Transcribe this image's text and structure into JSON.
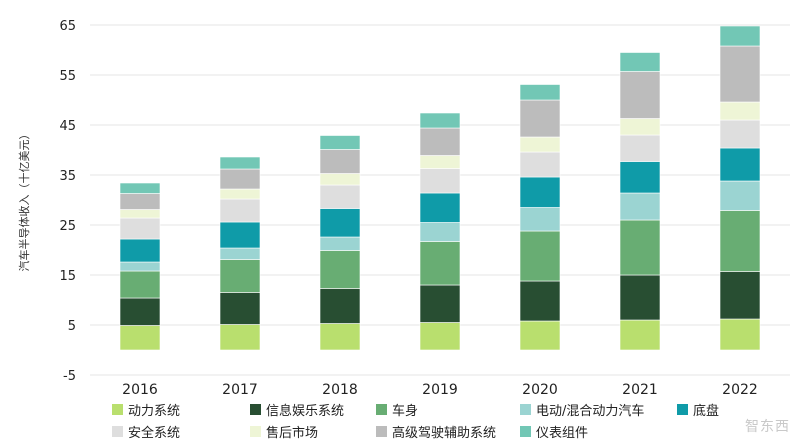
{
  "chart_data": {
    "type": "bar",
    "stacked": true,
    "categories": [
      "2016",
      "2017",
      "2018",
      "2019",
      "2020",
      "2021",
      "2022"
    ],
    "ylabel": "汽车半导体收入（十亿美元）",
    "xlabel": "",
    "title": "",
    "ylim": [
      -5,
      65
    ],
    "yticks": [
      "-5",
      "5",
      "15",
      "25",
      "35",
      "45",
      "55",
      "65"
    ],
    "grid": true,
    "legend_position": "bottom",
    "series": [
      {
        "name": "动力系统",
        "color": "#b9df6e",
        "values": [
          4.9,
          5.1,
          5.3,
          5.5,
          5.8,
          6.0,
          6.2
        ]
      },
      {
        "name": "信息娱乐系统",
        "color": "#284e32",
        "values": [
          5.5,
          6.4,
          7.0,
          7.5,
          8.0,
          9.0,
          9.5
        ]
      },
      {
        "name": "车身",
        "color": "#68ad73",
        "values": [
          5.4,
          6.6,
          7.6,
          8.7,
          10.0,
          11.0,
          12.2
        ]
      },
      {
        "name": "电动/混合动力汽车",
        "color": "#9bd4d2",
        "values": [
          1.8,
          2.3,
          2.7,
          3.8,
          4.7,
          5.4,
          5.9
        ]
      },
      {
        "name": "底盘",
        "color": "#0f9ba8",
        "values": [
          4.6,
          5.2,
          5.7,
          5.9,
          6.1,
          6.3,
          6.6
        ]
      },
      {
        "name": "安全系统",
        "color": "#dedede",
        "values": [
          4.2,
          4.6,
          4.7,
          4.9,
          5.0,
          5.3,
          5.6
        ]
      },
      {
        "name": "售后市场",
        "color": "#eef5d6",
        "values": [
          1.7,
          2.0,
          2.3,
          2.6,
          3.0,
          3.3,
          3.6
        ]
      },
      {
        "name": "高级驾驶辅助系统",
        "color": "#bcbcbc",
        "values": [
          3.2,
          4.0,
          4.8,
          5.5,
          7.4,
          9.4,
          11.2
        ]
      },
      {
        "name": "仪表组件",
        "color": "#72c7b5",
        "values": [
          2.1,
          2.4,
          2.8,
          3.0,
          3.1,
          3.8,
          4.0
        ]
      }
    ]
  },
  "watermark": "智东西"
}
